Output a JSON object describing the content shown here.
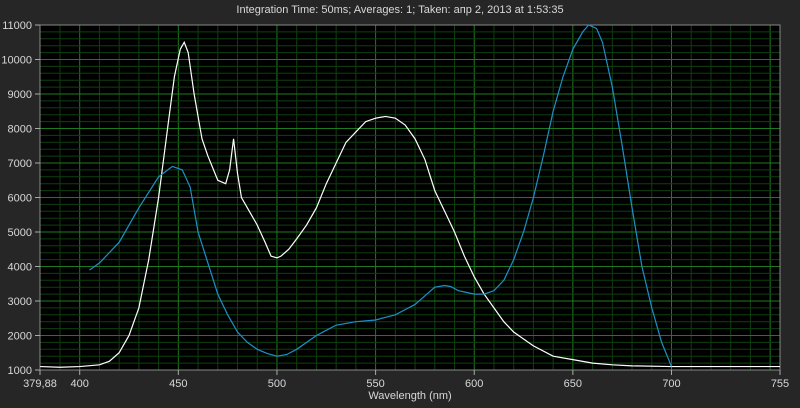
{
  "chart_data": {
    "type": "line",
    "title": "Integration Time: 50ms;  Averages: 1;  Taken: апр 2, 2013 at 1:53:35",
    "xlabel": "Wavelength (nm)",
    "ylabel": "",
    "xlim": [
      379.88,
      755
    ],
    "ylim": [
      1000,
      11000
    ],
    "xticks": [
      "379,88",
      "400",
      "450",
      "500",
      "550",
      "600",
      "650",
      "700",
      "755"
    ],
    "xtick_values": [
      379.88,
      400,
      450,
      500,
      550,
      600,
      650,
      700,
      755
    ],
    "yticks": [
      1000,
      2000,
      3000,
      4000,
      5000,
      6000,
      7000,
      8000,
      9000,
      10000,
      11000
    ],
    "grid": true,
    "colors": {
      "background": "#000000",
      "grid_major": "#1f7a1f",
      "grid_minor": "#0f3f0f",
      "series1": "#ffffff",
      "series2": "#1e90c8"
    },
    "series": [
      {
        "color": "#ffffff",
        "x": [
          380,
          390,
          400,
          410,
          415,
          420,
          425,
          430,
          435,
          440,
          445,
          448,
          451,
          453,
          455,
          458,
          462,
          465,
          470,
          474,
          476,
          478,
          480,
          482,
          486,
          490,
          494,
          497,
          500,
          502,
          506,
          510,
          515,
          520,
          525,
          530,
          535,
          540,
          545,
          550,
          555,
          560,
          565,
          570,
          575,
          580,
          585,
          590,
          595,
          600,
          605,
          610,
          615,
          620,
          625,
          630,
          640,
          650,
          660,
          670,
          680,
          700,
          720,
          740,
          755
        ],
        "y": [
          1100,
          1080,
          1100,
          1150,
          1250,
          1500,
          2000,
          2800,
          4200,
          6000,
          8200,
          9500,
          10300,
          10500,
          10200,
          9000,
          7700,
          7200,
          6500,
          6400,
          6800,
          7700,
          6700,
          6000,
          5600,
          5200,
          4700,
          4300,
          4250,
          4300,
          4500,
          4800,
          5200,
          5700,
          6400,
          7000,
          7600,
          7900,
          8200,
          8300,
          8350,
          8300,
          8100,
          7700,
          7100,
          6200,
          5600,
          5000,
          4300,
          3700,
          3200,
          2800,
          2400,
          2100,
          1900,
          1700,
          1400,
          1300,
          1200,
          1150,
          1120,
          1100,
          1100,
          1100,
          1100
        ]
      },
      {
        "color": "#1e90c8",
        "x": [
          405,
          410,
          420,
          430,
          440,
          447,
          452,
          456,
          460,
          465,
          470,
          475,
          480,
          485,
          490,
          495,
          500,
          505,
          510,
          515,
          520,
          525,
          530,
          540,
          550,
          560,
          565,
          570,
          575,
          580,
          585,
          588,
          592,
          596,
          600,
          605,
          610,
          615,
          620,
          625,
          630,
          635,
          640,
          645,
          650,
          655,
          658,
          662,
          665,
          670,
          675,
          680,
          685,
          690,
          695,
          700
        ],
        "y": [
          3900,
          4100,
          4700,
          5700,
          6600,
          6900,
          6800,
          6300,
          5000,
          4100,
          3200,
          2600,
          2100,
          1800,
          1600,
          1480,
          1400,
          1450,
          1600,
          1800,
          2000,
          2150,
          2300,
          2400,
          2450,
          2600,
          2750,
          2900,
          3150,
          3400,
          3450,
          3420,
          3300,
          3250,
          3200,
          3200,
          3300,
          3600,
          4200,
          5000,
          6000,
          7200,
          8500,
          9500,
          10300,
          10800,
          11000,
          10900,
          10500,
          9200,
          7500,
          5700,
          4000,
          2800,
          1800,
          1100
        ]
      }
    ]
  }
}
